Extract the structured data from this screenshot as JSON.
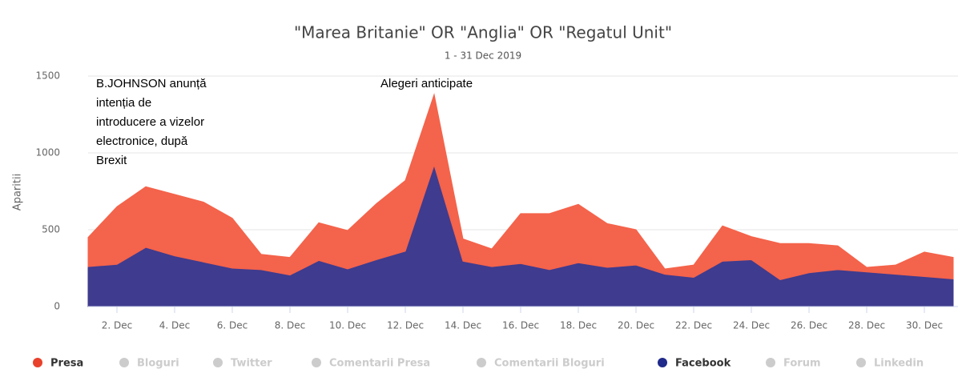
{
  "chart_data": {
    "type": "area",
    "stacking": "normal",
    "title": "\"Marea Britanie\" OR \"Anglia\" OR \"Regatul Unit\"",
    "subtitle": "1 - 31 Dec 2019",
    "y_label": "Aparitii",
    "x": [
      1,
      2,
      3,
      4,
      5,
      6,
      7,
      8,
      9,
      10,
      11,
      12,
      13,
      14,
      15,
      16,
      17,
      18,
      19,
      20,
      21,
      22,
      23,
      24,
      25,
      26,
      27,
      28,
      29,
      30,
      31
    ],
    "xlim": [
      1,
      31
    ],
    "xticks": [
      {
        "value": 2,
        "label": "2. Dec"
      },
      {
        "value": 4,
        "label": "4. Dec"
      },
      {
        "value": 6,
        "label": "6. Dec"
      },
      {
        "value": 8,
        "label": "8. Dec"
      },
      {
        "value": 10,
        "label": "10. Dec"
      },
      {
        "value": 12,
        "label": "12. Dec"
      },
      {
        "value": 14,
        "label": "14. Dec"
      },
      {
        "value": 16,
        "label": "16. Dec"
      },
      {
        "value": 18,
        "label": "18. Dec"
      },
      {
        "value": 20,
        "label": "20. Dec"
      },
      {
        "value": 22,
        "label": "22. Dec"
      },
      {
        "value": 24,
        "label": "24. Dec"
      },
      {
        "value": 26,
        "label": "26. Dec"
      },
      {
        "value": 28,
        "label": "28. Dec"
      },
      {
        "value": 30,
        "label": "30. Dec"
      }
    ],
    "ylim": [
      0,
      1500
    ],
    "yticks": [
      0,
      500,
      1000,
      1500
    ],
    "grid": true,
    "series": [
      {
        "name": "Presa",
        "color": "#f4634b",
        "legend_color": "#e8412c",
        "visible": true,
        "values": [
          190,
          375,
          395,
          400,
          390,
          325,
          100,
          115,
          245,
          250,
          365,
          460,
          460,
          145,
          115,
          325,
          365,
          380,
          285,
          230,
          35,
          80,
          230,
          150,
          235,
          190,
          155,
          30,
          60,
          160,
          140
        ]
      },
      {
        "name": "Bloguri",
        "color": "#cccccc",
        "visible": false
      },
      {
        "name": "Twitter",
        "color": "#cccccc",
        "visible": false
      },
      {
        "name": "Comentarii Presa",
        "color": "#cccccc",
        "visible": false
      },
      {
        "name": "Comentarii Bloguri",
        "color": "#cccccc",
        "visible": false
      },
      {
        "name": "Facebook",
        "color": "#3f3b8e",
        "legend_color": "#1f2a8a",
        "visible": true,
        "values": [
          260,
          275,
          385,
          330,
          290,
          250,
          240,
          205,
          300,
          245,
          305,
          360,
          920,
          295,
          260,
          280,
          240,
          285,
          255,
          270,
          210,
          190,
          295,
          305,
          175,
          220,
          240,
          225,
          210,
          195,
          180
        ]
      },
      {
        "name": "Forum",
        "color": "#cccccc",
        "visible": false
      },
      {
        "name": "Linkedin",
        "color": "#cccccc",
        "visible": false
      }
    ],
    "annotations": [
      {
        "lines": [
          "B.JOHNSON anunță",
          "intenția de",
          "introducere a vizelor",
          "electronice, după",
          "Brexit"
        ]
      },
      {
        "lines": [
          "Alegeri anticipate"
        ]
      }
    ]
  }
}
